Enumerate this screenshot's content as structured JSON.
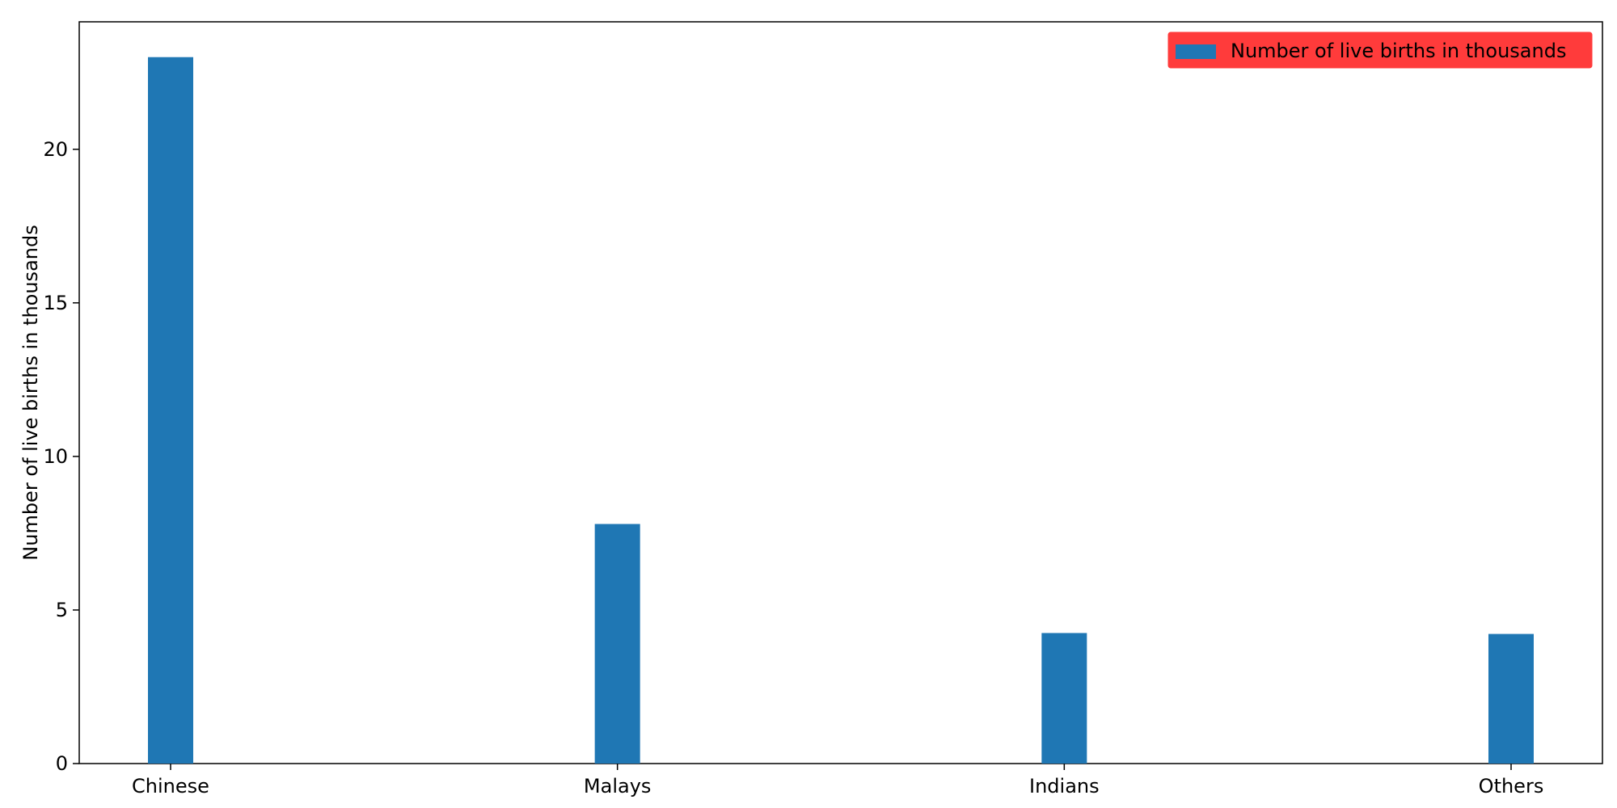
{
  "chart_data": {
    "type": "bar",
    "title": "",
    "xlabel": "",
    "ylabel": "Number of live births in thousands",
    "categories": [
      "Chinese",
      "Malays",
      "Indians",
      "Others"
    ],
    "series": [
      {
        "name": "Number of live births in thousands",
        "values": [
          23.0,
          7.8,
          4.25,
          4.22
        ],
        "color": "#1f77b4"
      }
    ],
    "ylim": [
      0,
      24.15
    ],
    "yticks": [
      0,
      5,
      10,
      15,
      20
    ],
    "grid": false,
    "legend": {
      "placement": "top-right",
      "background_color": "#ff3b3b",
      "border_color": "#ffffff"
    }
  }
}
